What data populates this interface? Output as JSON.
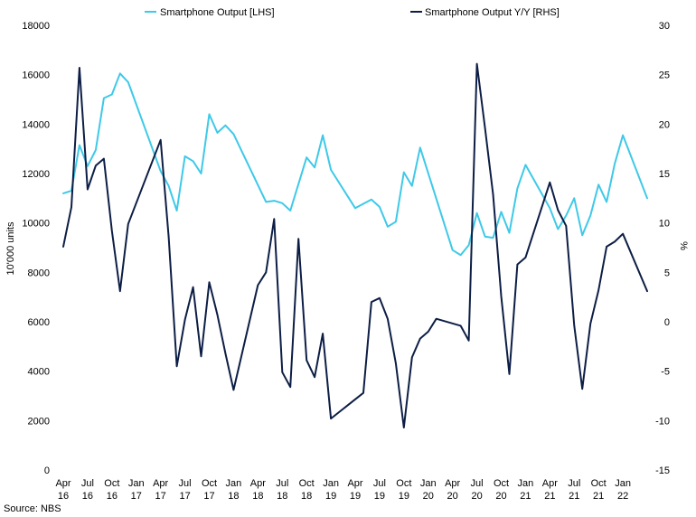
{
  "chart_data": {
    "type": "line",
    "title": "",
    "source": "Source: NBS",
    "y_left": {
      "label": "10'000 units",
      "lim": [
        0,
        18000
      ],
      "ticks": [
        0,
        2000,
        4000,
        6000,
        8000,
        10000,
        12000,
        14000,
        16000,
        18000
      ]
    },
    "y_right": {
      "label": "%",
      "lim": [
        -15,
        30
      ],
      "ticks": [
        -15,
        -10,
        -5,
        0,
        5,
        10,
        15,
        20,
        25,
        30
      ]
    },
    "x_ticks": [
      {
        "month": 0,
        "top": "Apr",
        "bottom": "16"
      },
      {
        "month": 3,
        "top": "Jul",
        "bottom": "16"
      },
      {
        "month": 6,
        "top": "Oct",
        "bottom": "16"
      },
      {
        "month": 9,
        "top": "Jan",
        "bottom": "17"
      },
      {
        "month": 12,
        "top": "Apr",
        "bottom": "17"
      },
      {
        "month": 15,
        "top": "Jul",
        "bottom": "17"
      },
      {
        "month": 18,
        "top": "Oct",
        "bottom": "17"
      },
      {
        "month": 21,
        "top": "Jan",
        "bottom": "18"
      },
      {
        "month": 24,
        "top": "Apr",
        "bottom": "18"
      },
      {
        "month": 27,
        "top": "Jul",
        "bottom": "18"
      },
      {
        "month": 30,
        "top": "Oct",
        "bottom": "18"
      },
      {
        "month": 33,
        "top": "Jan",
        "bottom": "19"
      },
      {
        "month": 36,
        "top": "Apr",
        "bottom": "19"
      },
      {
        "month": 39,
        "top": "Jul",
        "bottom": "19"
      },
      {
        "month": 42,
        "top": "Oct",
        "bottom": "19"
      },
      {
        "month": 45,
        "top": "Jan",
        "bottom": "20"
      },
      {
        "month": 48,
        "top": "Apr",
        "bottom": "20"
      },
      {
        "month": 51,
        "top": "Jul",
        "bottom": "20"
      },
      {
        "month": 54,
        "top": "Oct",
        "bottom": "20"
      },
      {
        "month": 57,
        "top": "Jan",
        "bottom": "21"
      },
      {
        "month": 60,
        "top": "Apr",
        "bottom": "21"
      },
      {
        "month": 63,
        "top": "Jul",
        "bottom": "21"
      },
      {
        "month": 66,
        "top": "Oct",
        "bottom": "21"
      },
      {
        "month": 69,
        "top": "Jan",
        "bottom": "22"
      }
    ],
    "x_range": [
      0,
      72
    ],
    "grid": false,
    "legend": "top",
    "series": [
      {
        "name": "Smartphone Output [LHS]",
        "axis": "left",
        "color": "#3ec9e8",
        "points": [
          [
            0,
            11200
          ],
          [
            1,
            11300
          ],
          [
            2,
            13150
          ],
          [
            3,
            12300
          ],
          [
            4,
            12950
          ],
          [
            5,
            15050
          ],
          [
            6,
            15200
          ],
          [
            7,
            16050
          ],
          [
            8,
            15700
          ],
          [
            12,
            12100
          ],
          [
            13,
            11500
          ],
          [
            14,
            10500
          ],
          [
            15,
            12700
          ],
          [
            16,
            12500
          ],
          [
            17,
            12000
          ],
          [
            18,
            14400
          ],
          [
            19,
            13650
          ],
          [
            20,
            13950
          ],
          [
            21,
            13600
          ],
          [
            25,
            10850
          ],
          [
            26,
            10900
          ],
          [
            27,
            10800
          ],
          [
            28,
            10500
          ],
          [
            30,
            12650
          ],
          [
            31,
            12250
          ],
          [
            32,
            13550
          ],
          [
            33,
            12150
          ],
          [
            36,
            10600
          ],
          [
            38,
            10950
          ],
          [
            39,
            10650
          ],
          [
            40,
            9850
          ],
          [
            41,
            10050
          ],
          [
            42,
            12050
          ],
          [
            43,
            11500
          ],
          [
            44,
            13050
          ],
          [
            48,
            8900
          ],
          [
            49,
            8700
          ],
          [
            50,
            9100
          ],
          [
            51,
            10400
          ],
          [
            52,
            9450
          ],
          [
            53,
            9400
          ],
          [
            54,
            10450
          ],
          [
            55,
            9600
          ],
          [
            56,
            11400
          ],
          [
            57,
            12350
          ],
          [
            60,
            10600
          ],
          [
            61,
            9750
          ],
          [
            62,
            10300
          ],
          [
            63,
            11000
          ],
          [
            64,
            9500
          ],
          [
            65,
            10300
          ],
          [
            66,
            11550
          ],
          [
            67,
            10850
          ],
          [
            68,
            12400
          ],
          [
            69,
            13550
          ],
          [
            72,
            11000
          ]
        ]
      },
      {
        "name": "Smartphone Output Y/Y [RHS]",
        "axis": "right",
        "color": "#0d1e45",
        "points": [
          [
            0,
            7.6
          ],
          [
            1,
            11.6
          ],
          [
            2,
            25.7
          ],
          [
            3,
            13.4
          ],
          [
            4,
            15.8
          ],
          [
            5,
            16.5
          ],
          [
            6,
            9.2
          ],
          [
            7,
            3.1
          ],
          [
            8,
            9.9
          ],
          [
            12,
            18.4
          ],
          [
            13,
            8.6
          ],
          [
            14,
            -4.5
          ],
          [
            15,
            0.2
          ],
          [
            16,
            3.5
          ],
          [
            17,
            -3.5
          ],
          [
            18,
            4.0
          ],
          [
            19,
            0.7
          ],
          [
            20,
            -3.2
          ],
          [
            21,
            -6.9
          ],
          [
            24,
            3.7
          ],
          [
            25,
            5.0
          ],
          [
            26,
            10.4
          ],
          [
            27,
            -5.1
          ],
          [
            28,
            -6.6
          ],
          [
            29,
            8.4
          ],
          [
            30,
            -3.9
          ],
          [
            31,
            -5.6
          ],
          [
            32,
            -1.2
          ],
          [
            33,
            -9.8
          ],
          [
            37,
            -7.2
          ],
          [
            38,
            2.0
          ],
          [
            39,
            2.4
          ],
          [
            40,
            0.3
          ],
          [
            41,
            -4.2
          ],
          [
            42,
            -10.7
          ],
          [
            43,
            -3.6
          ],
          [
            44,
            -1.7
          ],
          [
            45,
            -1.0
          ],
          [
            46,
            0.3
          ],
          [
            49,
            -0.4
          ],
          [
            50,
            -1.9
          ],
          [
            51,
            26.1
          ],
          [
            52,
            19.6
          ],
          [
            53,
            12.9
          ],
          [
            54,
            2.6
          ],
          [
            55,
            -5.3
          ],
          [
            56,
            5.8
          ],
          [
            57,
            6.5
          ],
          [
            60,
            14.1
          ],
          [
            61,
            11.3
          ],
          [
            62,
            9.7
          ],
          [
            63,
            -0.4
          ],
          [
            64,
            -6.8
          ],
          [
            65,
            -0.2
          ],
          [
            66,
            3.2
          ],
          [
            67,
            7.6
          ],
          [
            68,
            8.1
          ],
          [
            69,
            8.9
          ],
          [
            72,
            3.1
          ]
        ]
      }
    ]
  }
}
